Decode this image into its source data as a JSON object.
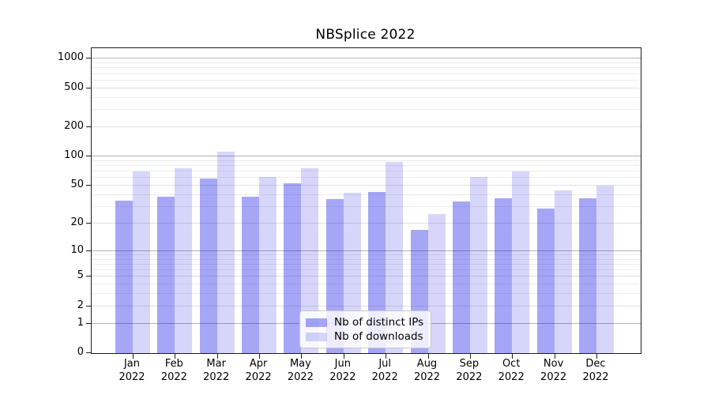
{
  "chart_data": {
    "type": "bar",
    "title": "NBSplice 2022",
    "categories": [
      "Jan 2022",
      "Feb 2022",
      "Mar 2022",
      "Apr 2022",
      "May 2022",
      "Jun 2022",
      "Jul 2022",
      "Aug 2022",
      "Sep 2022",
      "Oct 2022",
      "Nov 2022",
      "Dec 2022"
    ],
    "series": [
      {
        "name": "Nb of distinct IPs",
        "color": "rgba(0,0,230,0.35)",
        "values": [
          35,
          38,
          59,
          38,
          53,
          36,
          43,
          17,
          34,
          37,
          29,
          37
        ]
      },
      {
        "name": "Nb of downloads",
        "color": "rgba(0,0,230,0.16)",
        "values": [
          70,
          75,
          113,
          61,
          75,
          42,
          88,
          25,
          61,
          70,
          45,
          50
        ]
      }
    ],
    "xlabel": "",
    "ylabel": "",
    "yscale": "log(1+x)",
    "ylim": [
      0,
      1300
    ],
    "yticks": {
      "values": [
        0,
        1,
        2,
        5,
        10,
        20,
        50,
        100,
        200,
        500,
        1000
      ],
      "labels": [
        "0",
        "1",
        "2",
        "5",
        "10",
        "20",
        "50",
        "100",
        "200",
        "500",
        "1000"
      ]
    },
    "gridlines": {
      "major": [
        1,
        10,
        100,
        1000
      ],
      "mid": [
        2,
        5,
        20,
        50,
        200,
        500
      ],
      "minor": [
        3,
        4,
        6,
        7,
        8,
        9,
        30,
        40,
        60,
        70,
        80,
        90,
        300,
        400,
        600,
        700,
        800,
        900
      ],
      "major_color": "#b3b3b3",
      "mid_color": "#e0e0e0",
      "minor_color": "#ececec"
    },
    "legend": {
      "position": "lower center"
    },
    "grid": true,
    "axis_color": "#1c1c1c",
    "background": "#ffffff"
  }
}
